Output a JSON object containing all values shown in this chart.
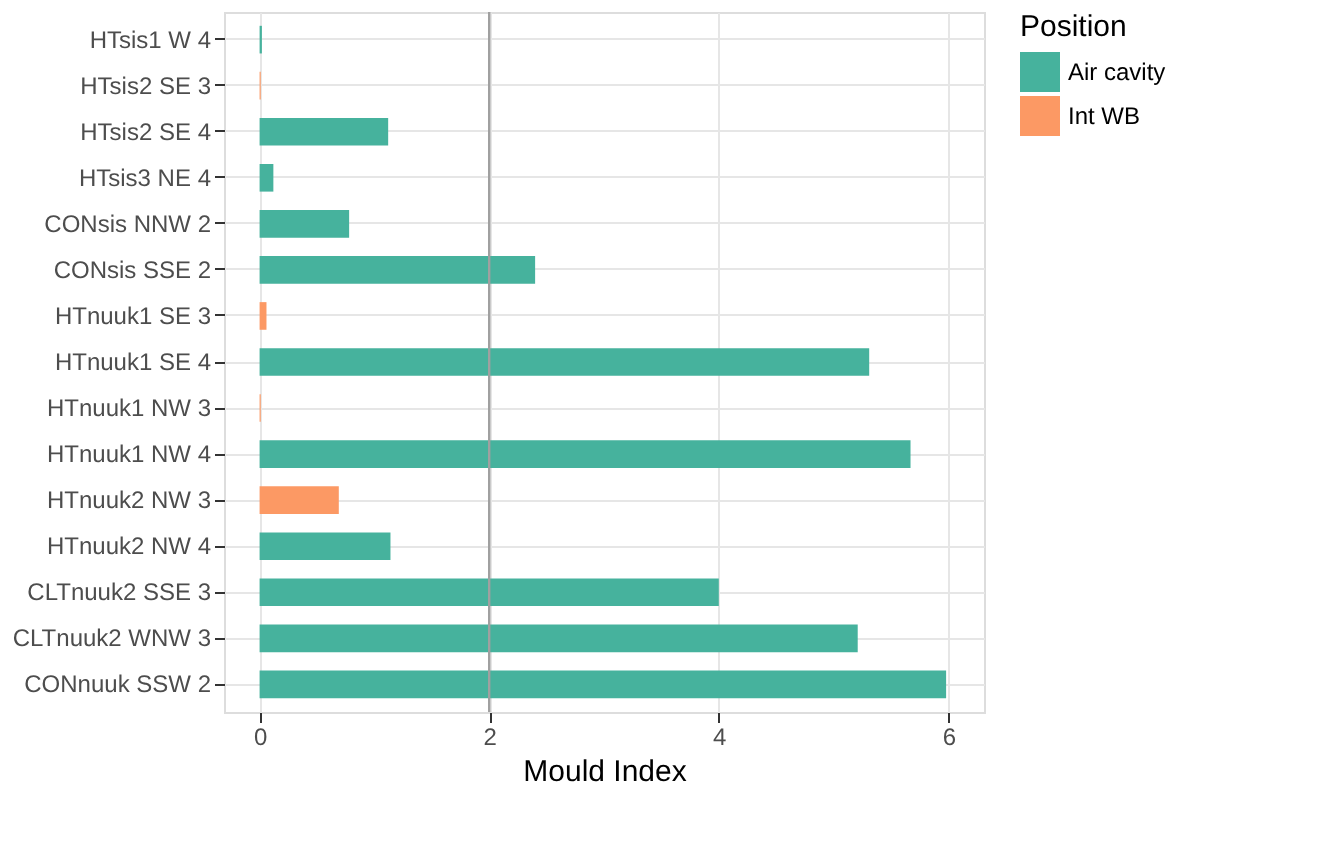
{
  "chart_data": {
    "type": "bar",
    "orientation": "horizontal",
    "xlabel": "Mould Index",
    "legend_title": "Position",
    "categories": [
      "HTsis1 W 4",
      "HTsis2 SE 3",
      "HTsis2 SE 4",
      "HTsis3 NE 4",
      "CONsis NNW 2",
      "CONsis SSE 2",
      "HTnuuk1 SE 3",
      "HTnuuk1 SE 4",
      "HTnuuk1 NW 3",
      "HTnuuk1 NW 4",
      "HTnuuk2 NW 3",
      "HTnuuk2 NW 4",
      "CLTnuuk2 SSE 3",
      "CLTnuuk2 WNW 3",
      "CONnuuk SSW 2"
    ],
    "series": [
      {
        "name": "Air cavity",
        "color": "#46b29d",
        "values": [
          0.02,
          null,
          1.12,
          0.12,
          0.78,
          2.4,
          null,
          5.31,
          null,
          5.67,
          null,
          1.14,
          4.0,
          5.21,
          5.98
        ]
      },
      {
        "name": "Int WB",
        "color": "#fc9964",
        "values": [
          null,
          0.01,
          null,
          null,
          null,
          null,
          0.06,
          null,
          0.01,
          null,
          0.69,
          null,
          null,
          null,
          null
        ]
      }
    ],
    "xlim": [
      -0.31,
      6.31
    ],
    "xticks": [
      0,
      2,
      4,
      6
    ],
    "grid": true,
    "legend": "right",
    "ref_lines": [
      {
        "axis": "x",
        "value": 2,
        "color": "#a0a0a0"
      }
    ]
  }
}
